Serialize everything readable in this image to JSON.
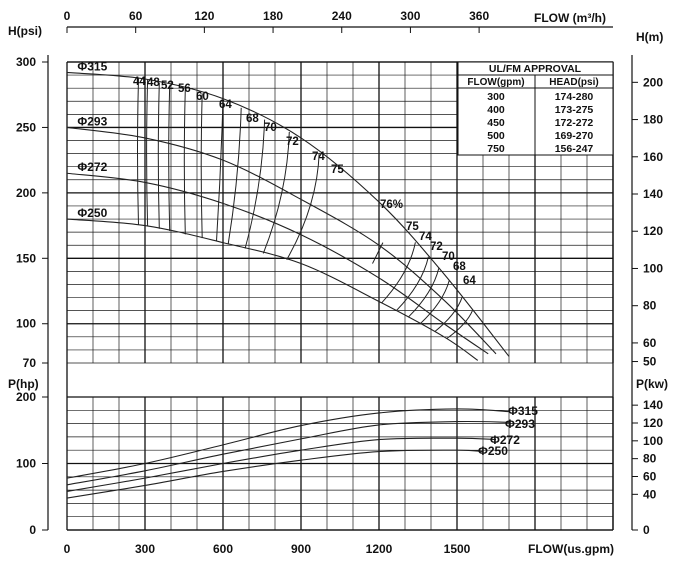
{
  "chart_data": {
    "type": "line",
    "axes": {
      "top_label": "FLOW (m³/h)",
      "top_ticks": [
        "0",
        "60",
        "120",
        "180",
        "240",
        "300",
        "360"
      ],
      "bottom_label": "FLOW(us.gpm)",
      "bottom_ticks": [
        "0",
        "300",
        "600",
        "900",
        "1200",
        "1500"
      ],
      "left_head_label": "H(psi)",
      "left_head_ticks": [
        "300",
        "250",
        "200",
        "150",
        "100",
        "70"
      ],
      "right_head_label": "H(m)",
      "right_head_ticks": [
        "200",
        "180",
        "160",
        "140",
        "120",
        "100",
        "80",
        "60",
        "50"
      ],
      "left_power_label": "P(hp)",
      "left_power_ticks": [
        "200",
        "100",
        "0"
      ],
      "right_power_label": "P(kw)",
      "right_power_ticks": [
        "140",
        "120",
        "100",
        "80",
        "60",
        "40",
        "0"
      ],
      "x_range_gpm": [
        0,
        2100
      ],
      "head_range_psi": [
        70,
        300
      ],
      "power_range_hp": [
        0,
        200
      ],
      "grid": true
    },
    "head_curves": [
      {
        "name": "Φ315",
        "x": [
          0,
          300,
          600,
          900,
          1200,
          1450,
          1700
        ],
        "y": [
          292,
          287,
          272,
          242,
          193,
          138,
          75
        ]
      },
      {
        "name": "Φ293",
        "x": [
          0,
          300,
          600,
          900,
          1200,
          1450,
          1650
        ],
        "y": [
          250,
          242,
          225,
          195,
          160,
          118,
          77
        ]
      },
      {
        "name": "Φ272",
        "x": [
          0,
          300,
          600,
          900,
          1200,
          1450,
          1620
        ],
        "y": [
          215,
          208,
          192,
          168,
          135,
          100,
          77
        ]
      },
      {
        "name": "Φ250",
        "x": [
          0,
          300,
          600,
          900,
          1200,
          1450,
          1580
        ],
        "y": [
          180,
          175,
          162,
          146,
          117,
          90,
          72
        ]
      }
    ],
    "power_curves": [
      {
        "name": "Φ315",
        "x": [
          0,
          300,
          600,
          900,
          1200,
          1500,
          1700
        ],
        "y": [
          78,
          100,
          128,
          157,
          176,
          182,
          178
        ]
      },
      {
        "name": "Φ293",
        "x": [
          0,
          300,
          600,
          900,
          1200,
          1500,
          1700
        ],
        "y": [
          68,
          89,
          114,
          137,
          158,
          163,
          162
        ]
      },
      {
        "name": "Φ272",
        "x": [
          0,
          300,
          600,
          900,
          1200,
          1500,
          1650
        ],
        "y": [
          58,
          78,
          100,
          120,
          136,
          138,
          136
        ]
      },
      {
        "name": "Φ250",
        "x": [
          0,
          300,
          600,
          900,
          1200,
          1500,
          1600
        ],
        "y": [
          48,
          67,
          88,
          105,
          118,
          120,
          118
        ]
      }
    ],
    "efficiency_labels": [
      "44",
      "48",
      "52",
      "56",
      "60",
      "64",
      "68",
      "70",
      "72",
      "74",
      "75",
      "76%",
      "75",
      "74",
      "72",
      "70",
      "68",
      "64"
    ],
    "approval_table": {
      "title": "UL/FM APPROVAL",
      "columns": [
        "FLOW(gpm)",
        "HEAD(psi)"
      ],
      "rows": [
        [
          "300",
          "174-280"
        ],
        [
          "400",
          "173-275"
        ],
        [
          "450",
          "172-272"
        ],
        [
          "500",
          "169-270"
        ],
        [
          "750",
          "156-247"
        ]
      ]
    }
  }
}
